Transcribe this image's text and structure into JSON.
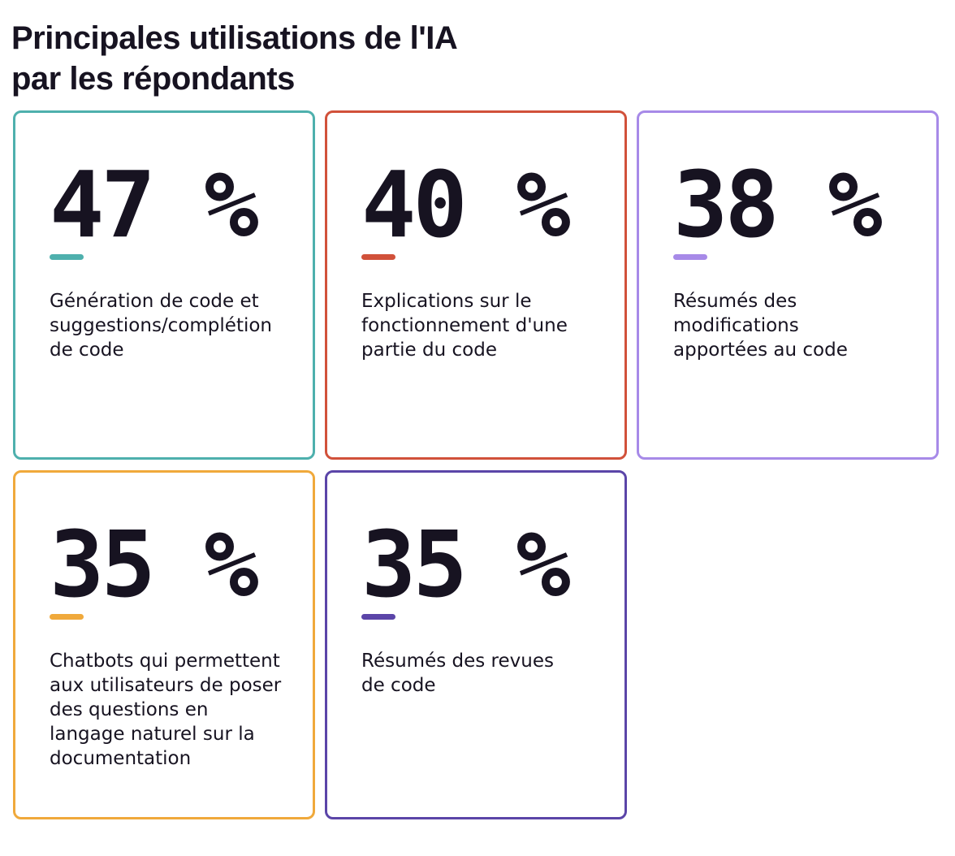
{
  "title": {
    "line1": "Principales utilisations de l'IA",
    "line2": "par les répondants"
  },
  "cards": [
    {
      "value": "47 %",
      "accent": "#4eb0ad",
      "lines": [
        "Génération de code et",
        "suggestions/complétion",
        "de code"
      ]
    },
    {
      "value": "40 %",
      "accent": "#d1513a",
      "lines": [
        "Explications sur le",
        "fonctionnement d'une",
        "partie du code"
      ]
    },
    {
      "value": "38 %",
      "accent": "#a78ae8",
      "lines": [
        "Résumés des",
        "modifications",
        "apportées au code"
      ]
    },
    {
      "value": "35 %",
      "accent": "#f0a93b",
      "lines": [
        "Chatbots qui permettent",
        "aux utilisateurs de poser",
        "des questions en",
        "langage naturel sur la",
        "documentation"
      ]
    },
    {
      "value": "35 %",
      "accent": "#5b45a8",
      "lines": [
        "Résumés des revues",
        "de code"
      ]
    }
  ]
}
